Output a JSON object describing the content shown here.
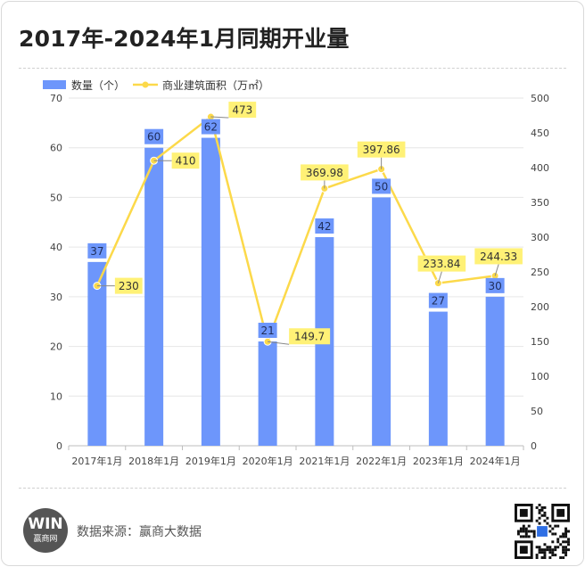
{
  "title": "2017年-2024年1月同期开业量",
  "source_text": "数据来源：赢商大数据",
  "logo": {
    "mark": "WIN",
    "name": "赢商网",
    "icon": "winshang-logo"
  },
  "qr_icon": "qr-code-icon",
  "colors": {
    "bar": "#6d96fb",
    "line": "#fcd94a",
    "label_bg": "#fff176",
    "grid": "#e6e6e6",
    "axis_text": "#444444"
  },
  "chart_data": {
    "type": "bar",
    "categories": [
      "2017年1月",
      "2018年1月",
      "2019年1月",
      "2020年1月",
      "2021年1月",
      "2022年1月",
      "2023年1月",
      "2024年1月"
    ],
    "series": [
      {
        "name": "数量（个）",
        "type": "bar",
        "axis": "left",
        "values": [
          37,
          60,
          62,
          21,
          42,
          50,
          27,
          30
        ],
        "labels": [
          "37",
          "60",
          "62",
          "21",
          "42",
          "50",
          "27",
          "30"
        ]
      },
      {
        "name": "商业建筑面积（万㎡）",
        "type": "line",
        "axis": "right",
        "values": [
          230,
          410,
          473,
          149.7,
          369.98,
          397.86,
          233.84,
          244.33
        ],
        "labels": [
          "230",
          "410",
          "473",
          "149.7",
          "369.98",
          "397.86",
          "233.84",
          "244.33"
        ]
      }
    ],
    "y_left": {
      "min": 0,
      "max": 70,
      "ticks": [
        "0",
        "10",
        "20",
        "30",
        "40",
        "50",
        "60",
        "70"
      ]
    },
    "y_right": {
      "min": 0,
      "max": 500,
      "ticks": [
        "0",
        "50",
        "100",
        "150",
        "200",
        "250",
        "300",
        "350",
        "400",
        "450",
        "500"
      ]
    },
    "grid": true,
    "legend_position": "top-left"
  }
}
